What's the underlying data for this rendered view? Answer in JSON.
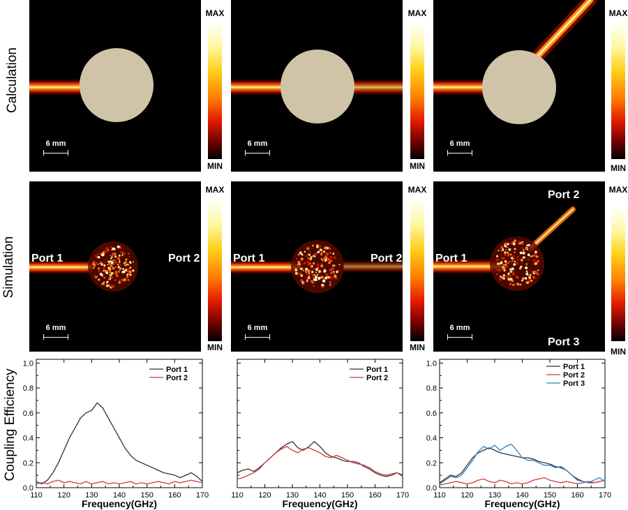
{
  "row_labels": {
    "calculation": "Calculation",
    "simulation": "Simulation",
    "coupling": "Coupling Efficiency"
  },
  "colorbar": {
    "max": "MAX",
    "min": "MIN"
  },
  "scale_bar": "6 mm",
  "colors": {
    "port1": "#333333",
    "port2": "#d03a3a",
    "port3": "#2a7fc1"
  },
  "simulation_ports": {
    "panel1": [
      "Port 1",
      "Port 2"
    ],
    "panel2": [
      "Port 1",
      "Port 2"
    ],
    "panel3": [
      "Port 1",
      "Port 2",
      "Port 3"
    ]
  },
  "chart_data": [
    {
      "type": "line",
      "xlabel": "Frequency(GHz)",
      "ylabel": "Coupling Efficiency",
      "xlim": [
        110,
        170
      ],
      "ylim": [
        0,
        1.03
      ],
      "xticks": [
        "110",
        "120",
        "130",
        "140",
        "150",
        "160",
        "170"
      ],
      "yticks": [
        "0.0",
        "0.2",
        "0.4",
        "0.6",
        "0.8",
        "1.0"
      ],
      "legend_position": "top-right",
      "x": [
        110,
        112,
        114,
        116,
        118,
        120,
        122,
        124,
        126,
        128,
        130,
        132,
        134,
        136,
        138,
        140,
        142,
        144,
        146,
        148,
        150,
        152,
        154,
        156,
        158,
        160,
        162,
        164,
        166,
        168,
        170
      ],
      "series": [
        {
          "name": "Port 1",
          "values": [
            0.05,
            0.03,
            0.06,
            0.12,
            0.2,
            0.3,
            0.4,
            0.48,
            0.56,
            0.6,
            0.62,
            0.68,
            0.64,
            0.56,
            0.48,
            0.4,
            0.32,
            0.26,
            0.22,
            0.2,
            0.18,
            0.16,
            0.14,
            0.12,
            0.11,
            0.1,
            0.08,
            0.1,
            0.12,
            0.09,
            0.05
          ]
        },
        {
          "name": "Port 2",
          "values": [
            0.03,
            0.04,
            0.03,
            0.05,
            0.06,
            0.04,
            0.05,
            0.04,
            0.03,
            0.05,
            0.03,
            0.04,
            0.05,
            0.03,
            0.04,
            0.03,
            0.04,
            0.05,
            0.03,
            0.04,
            0.03,
            0.04,
            0.05,
            0.04,
            0.03,
            0.05,
            0.04,
            0.05,
            0.06,
            0.05,
            0.04
          ]
        }
      ]
    },
    {
      "type": "line",
      "xlabel": "Frequency(GHz)",
      "xlim": [
        110,
        170
      ],
      "ylim": [
        0,
        1.03
      ],
      "xticks": [
        "110",
        "120",
        "130",
        "140",
        "150",
        "160",
        "170"
      ],
      "legend_position": "top-right",
      "x": [
        110,
        112,
        114,
        116,
        118,
        120,
        122,
        124,
        126,
        128,
        130,
        132,
        134,
        136,
        138,
        140,
        142,
        144,
        146,
        148,
        150,
        152,
        154,
        156,
        158,
        160,
        162,
        164,
        166,
        168,
        170
      ],
      "series": [
        {
          "name": "Port 1",
          "values": [
            0.12,
            0.14,
            0.15,
            0.13,
            0.16,
            0.2,
            0.24,
            0.28,
            0.32,
            0.35,
            0.37,
            0.32,
            0.3,
            0.33,
            0.37,
            0.33,
            0.28,
            0.25,
            0.24,
            0.22,
            0.21,
            0.21,
            0.2,
            0.17,
            0.15,
            0.12,
            0.1,
            0.09,
            0.1,
            0.12,
            0.1
          ]
        },
        {
          "name": "Port 2",
          "values": [
            0.07,
            0.08,
            0.1,
            0.12,
            0.15,
            0.2,
            0.24,
            0.28,
            0.31,
            0.33,
            0.3,
            0.28,
            0.31,
            0.32,
            0.3,
            0.28,
            0.25,
            0.24,
            0.26,
            0.24,
            0.22,
            0.2,
            0.19,
            0.18,
            0.16,
            0.13,
            0.11,
            0.1,
            0.11,
            0.12,
            0.09
          ]
        }
      ]
    },
    {
      "type": "line",
      "xlabel": "Frequency(GHz)",
      "xlim": [
        110,
        170
      ],
      "ylim": [
        0,
        1.03
      ],
      "xticks": [
        "110",
        "120",
        "130",
        "140",
        "150",
        "160",
        "170"
      ],
      "yticks": [
        "0.0",
        "0.2",
        "0.4",
        "0.6",
        "0.8",
        "1.0"
      ],
      "legend_position": "top-right",
      "x": [
        110,
        112,
        114,
        116,
        118,
        120,
        122,
        124,
        126,
        128,
        130,
        132,
        134,
        136,
        138,
        140,
        142,
        144,
        146,
        148,
        150,
        152,
        154,
        156,
        158,
        160,
        162,
        164,
        166,
        168,
        170
      ],
      "series": [
        {
          "name": "Port 1",
          "values": [
            0.04,
            0.07,
            0.1,
            0.09,
            0.12,
            0.18,
            0.24,
            0.28,
            0.3,
            0.32,
            0.3,
            0.28,
            0.27,
            0.26,
            0.25,
            0.24,
            0.24,
            0.23,
            0.21,
            0.2,
            0.19,
            0.17,
            0.16,
            0.14,
            0.1,
            0.07,
            0.05,
            0.04,
            0.04,
            0.05,
            0.06
          ]
        },
        {
          "name": "Port 2",
          "values": [
            0.02,
            0.03,
            0.04,
            0.05,
            0.04,
            0.03,
            0.04,
            0.06,
            0.07,
            0.05,
            0.04,
            0.06,
            0.05,
            0.03,
            0.04,
            0.03,
            0.04,
            0.06,
            0.07,
            0.08,
            0.06,
            0.05,
            0.04,
            0.05,
            0.04,
            0.03,
            0.04,
            0.05,
            0.04,
            0.05,
            0.06
          ]
        },
        {
          "name": "Port 3",
          "values": [
            0.03,
            0.06,
            0.09,
            0.08,
            0.1,
            0.16,
            0.22,
            0.29,
            0.33,
            0.31,
            0.34,
            0.3,
            0.33,
            0.35,
            0.3,
            0.24,
            0.22,
            0.22,
            0.2,
            0.18,
            0.18,
            0.16,
            0.17,
            0.14,
            0.1,
            0.06,
            0.05,
            0.04,
            0.06,
            0.08,
            0.05
          ]
        }
      ]
    }
  ]
}
